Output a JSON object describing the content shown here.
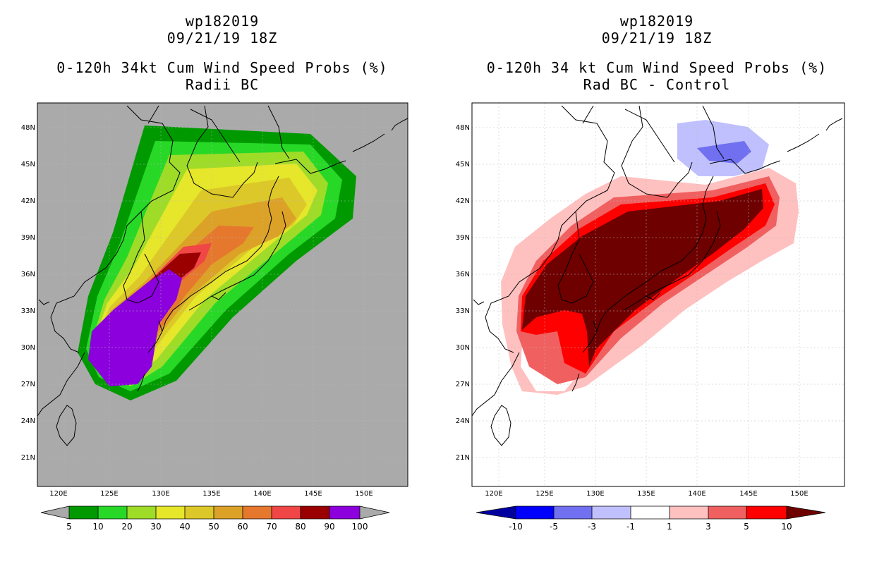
{
  "left": {
    "line1": "wp182019",
    "line2": "09/21/19 18Z",
    "line3": "0-120h 34kt Cum Wind Speed Probs (%)",
    "line4": "Radii BC",
    "colorbar": {
      "labels": [
        "5",
        "10",
        "20",
        "30",
        "40",
        "50",
        "60",
        "70",
        "80",
        "90",
        "100"
      ],
      "colors": [
        "#009a00",
        "#27d827",
        "#9edc28",
        "#e6e62a",
        "#dcc828",
        "#dca228",
        "#e6782e",
        "#f04646",
        "#9b0000",
        "#8b00dc"
      ]
    }
  },
  "right": {
    "line1": "wp182019",
    "line2": "09/21/19 18Z",
    "line3": "0-120h 34 kt Cum Wind Speed Probs (%)",
    "line4": "Rad BC - Control",
    "colorbar": {
      "labels": [
        "-10",
        "-5",
        "-3",
        "-1",
        "1",
        "3",
        "5",
        "10"
      ],
      "colors": [
        "#0000a0",
        "#0000ff",
        "#7070f0",
        "#c0c0ff",
        "#ffffff",
        "#ffc0c0",
        "#f06060",
        "#ff0000",
        "#6e0000"
      ]
    }
  },
  "axes": {
    "lat_labels": [
      "48N",
      "45N",
      "42N",
      "39N",
      "36N",
      "33N",
      "30N",
      "27N",
      "24N",
      "21N"
    ],
    "lon_labels": [
      "120E",
      "125E",
      "130E",
      "135E",
      "140E",
      "145E",
      "150E"
    ]
  },
  "colors": {
    "left_bg": "#aaaaaa",
    "grid": "#bbbbbb"
  }
}
